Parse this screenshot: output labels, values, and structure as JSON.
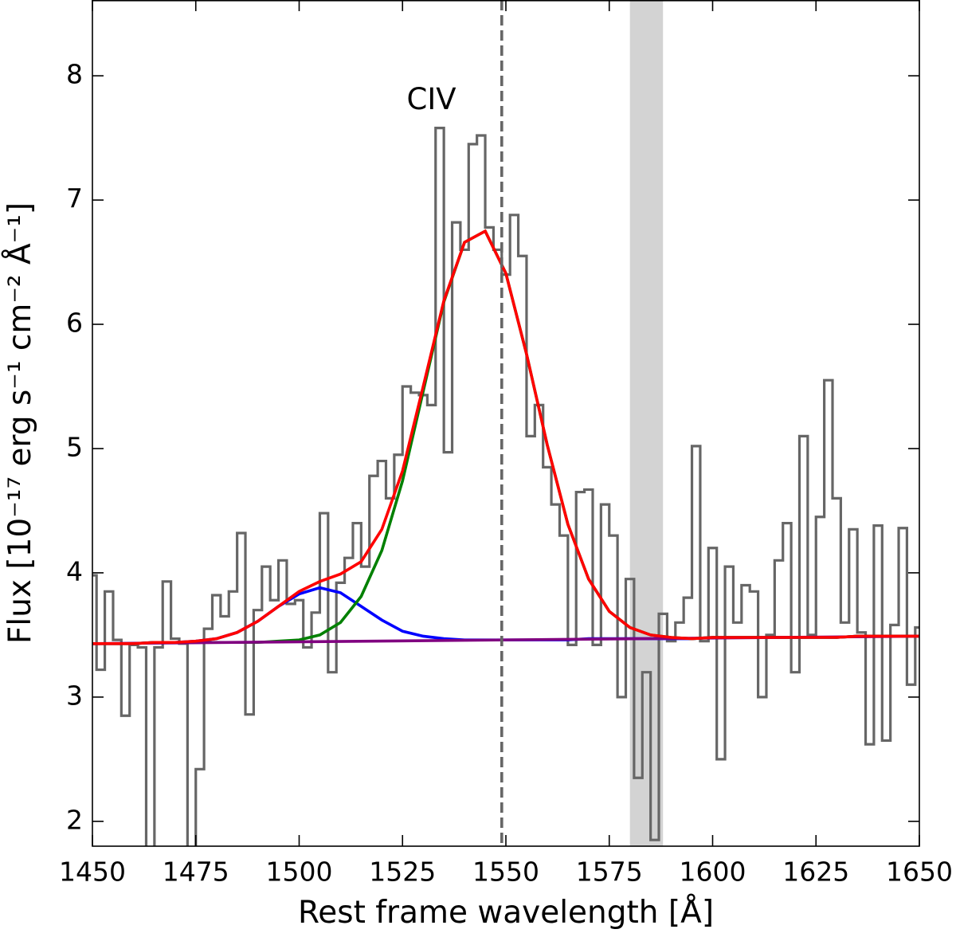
{
  "chart_data": {
    "type": "line",
    "xlabel": "Rest frame wavelength [Å]",
    "ylabel": "Flux [10⁻¹⁷ erg s⁻¹ cm⁻² Å⁻¹]",
    "xlim": [
      1450,
      1650
    ],
    "ylim": [
      1.8,
      8.61
    ],
    "xticks": [
      1450,
      1475,
      1500,
      1525,
      1550,
      1575,
      1600,
      1625,
      1650
    ],
    "yticks": [
      2,
      3,
      4,
      5,
      6,
      7,
      8
    ],
    "grid": false,
    "annotations": [
      {
        "text": "CIV",
        "x": 1532,
        "y": 7.8
      }
    ],
    "vlines": [
      {
        "x": 1549,
        "color": "#666666",
        "style": "dashed"
      }
    ],
    "bands": [
      {
        "x": [
          1580,
          1588
        ],
        "color": "#d3d3d3"
      }
    ],
    "series": [
      {
        "color": "#666666",
        "drawstyle": "steps-mid",
        "x": [
          1450,
          1452,
          1454,
          1456,
          1458,
          1460,
          1462,
          1464,
          1466,
          1468,
          1470,
          1472,
          1474,
          1476,
          1478,
          1480,
          1482,
          1484,
          1486,
          1488,
          1490,
          1492,
          1494,
          1496,
          1498,
          1500,
          1502,
          1504,
          1506,
          1508,
          1510,
          1512,
          1514,
          1516,
          1518,
          1520,
          1522,
          1524,
          1526,
          1528,
          1530,
          1532,
          1534,
          1536,
          1538,
          1540,
          1542,
          1544,
          1546,
          1548,
          1550,
          1552,
          1554,
          1556,
          1558,
          1560,
          1562,
          1564,
          1566,
          1568,
          1570,
          1572,
          1574,
          1576,
          1578,
          1580,
          1582,
          1584,
          1586,
          1588,
          1590,
          1592,
          1594,
          1596,
          1598,
          1600,
          1602,
          1604,
          1606,
          1608,
          1610,
          1612,
          1614,
          1616,
          1618,
          1620,
          1622,
          1624,
          1626,
          1628,
          1630,
          1632,
          1634,
          1636,
          1638,
          1640,
          1642,
          1644,
          1646,
          1648,
          1650
        ],
        "values": [
          3.98,
          3.22,
          3.85,
          3.46,
          2.85,
          3.42,
          3.4,
          1.75,
          3.4,
          3.93,
          3.47,
          3.43,
          1.75,
          2.42,
          3.55,
          3.82,
          3.65,
          3.85,
          4.32,
          2.86,
          3.7,
          4.05,
          3.78,
          4.1,
          3.75,
          3.78,
          3.4,
          3.68,
          4.48,
          3.2,
          3.92,
          4.12,
          4.4,
          4.05,
          4.78,
          4.9,
          4.6,
          4.95,
          5.5,
          5.45,
          5.43,
          5.35,
          7.58,
          4.97,
          6.82,
          6.6,
          7.45,
          7.52,
          6.78,
          6.6,
          6.4,
          6.88,
          6.55,
          5.1,
          5.35,
          4.85,
          4.55,
          4.3,
          3.42,
          4.65,
          4.67,
          3.42,
          4.55,
          4.3,
          3.0,
          3.95,
          2.35,
          3.2,
          1.85,
          3.67,
          3.45,
          3.6,
          3.8,
          5.02,
          3.45,
          4.2,
          2.5,
          4.05,
          3.6,
          3.9,
          3.85,
          3.0,
          3.5,
          4.1,
          4.4,
          3.2,
          5.1,
          3.5,
          4.45,
          5.55,
          4.6,
          3.6,
          4.35,
          3.52,
          2.62,
          4.38,
          2.65,
          3.58,
          4.36,
          3.1,
          3.56
        ]
      },
      {
        "color": "#0000ff",
        "x": [
          1450,
          1455,
          1460,
          1465,
          1470,
          1475,
          1480,
          1485,
          1490,
          1495,
          1500,
          1505,
          1510,
          1515,
          1520,
          1525,
          1530,
          1535,
          1540,
          1545,
          1550,
          1555,
          1560,
          1565,
          1570,
          1575,
          1580,
          1585,
          1590,
          1595,
          1600,
          1605,
          1610,
          1615,
          1620,
          1625,
          1630,
          1635,
          1640,
          1645,
          1650
        ],
        "values": [
          3.43,
          3.43,
          3.43,
          3.44,
          3.44,
          3.45,
          3.47,
          3.52,
          3.61,
          3.73,
          3.83,
          3.88,
          3.84,
          3.73,
          3.62,
          3.53,
          3.49,
          3.47,
          3.46,
          3.46,
          3.46,
          3.46,
          3.46,
          3.46,
          3.47,
          3.47,
          3.47,
          3.47,
          3.47,
          3.47,
          3.48,
          3.48,
          3.48,
          3.48,
          3.48,
          3.48,
          3.48,
          3.49,
          3.49,
          3.49,
          3.49
        ]
      },
      {
        "color": "#008000",
        "x": [
          1450,
          1455,
          1460,
          1465,
          1470,
          1475,
          1480,
          1485,
          1490,
          1495,
          1500,
          1505,
          1510,
          1515,
          1520,
          1525,
          1530,
          1535,
          1540,
          1545,
          1550,
          1555,
          1560,
          1565,
          1570,
          1575,
          1580,
          1585,
          1590,
          1595,
          1600,
          1605,
          1610,
          1615,
          1620,
          1625,
          1630,
          1635,
          1640,
          1645,
          1650
        ],
        "values": [
          3.43,
          3.43,
          3.43,
          3.44,
          3.44,
          3.44,
          3.44,
          3.44,
          3.44,
          3.45,
          3.46,
          3.5,
          3.6,
          3.81,
          4.18,
          4.74,
          5.46,
          6.18,
          6.66,
          6.75,
          6.41,
          5.76,
          5.03,
          4.39,
          3.95,
          3.69,
          3.56,
          3.5,
          3.48,
          3.47,
          3.48,
          3.48,
          3.48,
          3.48,
          3.48,
          3.48,
          3.48,
          3.49,
          3.49,
          3.49,
          3.49
        ]
      },
      {
        "color": "#800080",
        "x": [
          1450,
          1650
        ],
        "values": [
          3.43,
          3.49
        ]
      },
      {
        "color": "#ff0000",
        "x": [
          1450,
          1455,
          1460,
          1465,
          1470,
          1475,
          1480,
          1485,
          1490,
          1495,
          1500,
          1505,
          1510,
          1515,
          1520,
          1525,
          1530,
          1535,
          1540,
          1545,
          1550,
          1555,
          1560,
          1565,
          1570,
          1575,
          1580,
          1585,
          1590,
          1595,
          1600,
          1605,
          1610,
          1615,
          1620,
          1625,
          1630,
          1635,
          1640,
          1645,
          1650
        ],
        "values": [
          3.43,
          3.43,
          3.43,
          3.44,
          3.44,
          3.45,
          3.47,
          3.52,
          3.61,
          3.73,
          3.85,
          3.93,
          3.99,
          4.09,
          4.35,
          4.82,
          5.5,
          6.19,
          6.66,
          6.75,
          6.41,
          5.76,
          5.03,
          4.39,
          3.95,
          3.69,
          3.56,
          3.5,
          3.48,
          3.47,
          3.48,
          3.48,
          3.48,
          3.48,
          3.48,
          3.48,
          3.48,
          3.49,
          3.49,
          3.49,
          3.49
        ]
      }
    ]
  }
}
